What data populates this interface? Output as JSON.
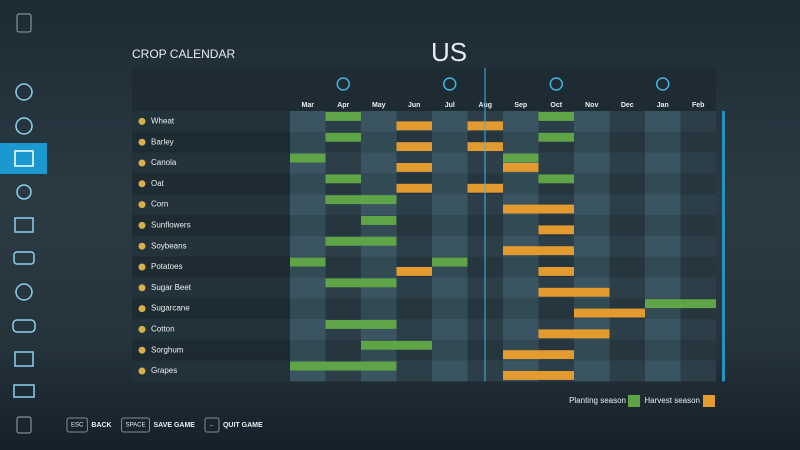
{
  "header": {
    "title": "CROP CALENDAR",
    "region": "US"
  },
  "months": [
    "Mar",
    "Apr",
    "May",
    "Jun",
    "Jul",
    "Aug",
    "Sep",
    "Oct",
    "Nov",
    "Dec",
    "Jan",
    "Feb"
  ],
  "crops": [
    {
      "name": "Wheat",
      "planting": [
        "Apr",
        "Oct"
      ],
      "harvest": [
        "Jun",
        "Aug"
      ]
    },
    {
      "name": "Barley",
      "planting": [
        "Apr",
        "Oct"
      ],
      "harvest": [
        "Jun",
        "Aug"
      ]
    },
    {
      "name": "Canola",
      "planting": [
        "Mar",
        "Sep"
      ],
      "harvest": [
        "Jun",
        "Sep"
      ]
    },
    {
      "name": "Oat",
      "planting": [
        "Apr",
        "Oct"
      ],
      "harvest": [
        "Jun",
        "Aug"
      ]
    },
    {
      "name": "Corn",
      "planting": [
        "Apr",
        "May"
      ],
      "harvest": [
        "Sep",
        "Oct"
      ]
    },
    {
      "name": "Sunflowers",
      "planting": [
        "May"
      ],
      "harvest": [
        "Oct"
      ]
    },
    {
      "name": "Soybeans",
      "planting": [
        "Apr",
        "May"
      ],
      "harvest": [
        "Sep",
        "Oct"
      ]
    },
    {
      "name": "Potatoes",
      "planting": [
        "Mar",
        "Jul"
      ],
      "harvest": [
        "Jun",
        "Oct"
      ]
    },
    {
      "name": "Sugar Beet",
      "planting": [
        "Apr",
        "May"
      ],
      "harvest": [
        "Oct",
        "Nov"
      ]
    },
    {
      "name": "Sugarcane",
      "planting": [
        "Jan",
        "Feb"
      ],
      "harvest": [
        "Nov",
        "Dec"
      ]
    },
    {
      "name": "Cotton",
      "planting": [
        "Apr",
        "May"
      ],
      "harvest": [
        "Oct",
        "Nov"
      ]
    },
    {
      "name": "Sorghum",
      "planting": [
        "May",
        "Jun"
      ],
      "harvest": [
        "Sep",
        "Oct"
      ]
    },
    {
      "name": "Grapes",
      "planting": [
        "Mar",
        "Apr",
        "May"
      ],
      "harvest": [
        "Sep",
        "Oct"
      ]
    }
  ],
  "legend": {
    "planting": "Planting season",
    "harvest": "Harvest season",
    "planting_color": "#5fa548",
    "harvest_color": "#e39a2f"
  },
  "buttons": [
    {
      "key": "ESC",
      "label": "BACK"
    },
    {
      "key": "SPACE",
      "label": "SAVE GAME"
    },
    {
      "key": "←",
      "label": "QUIT GAME"
    }
  ]
}
